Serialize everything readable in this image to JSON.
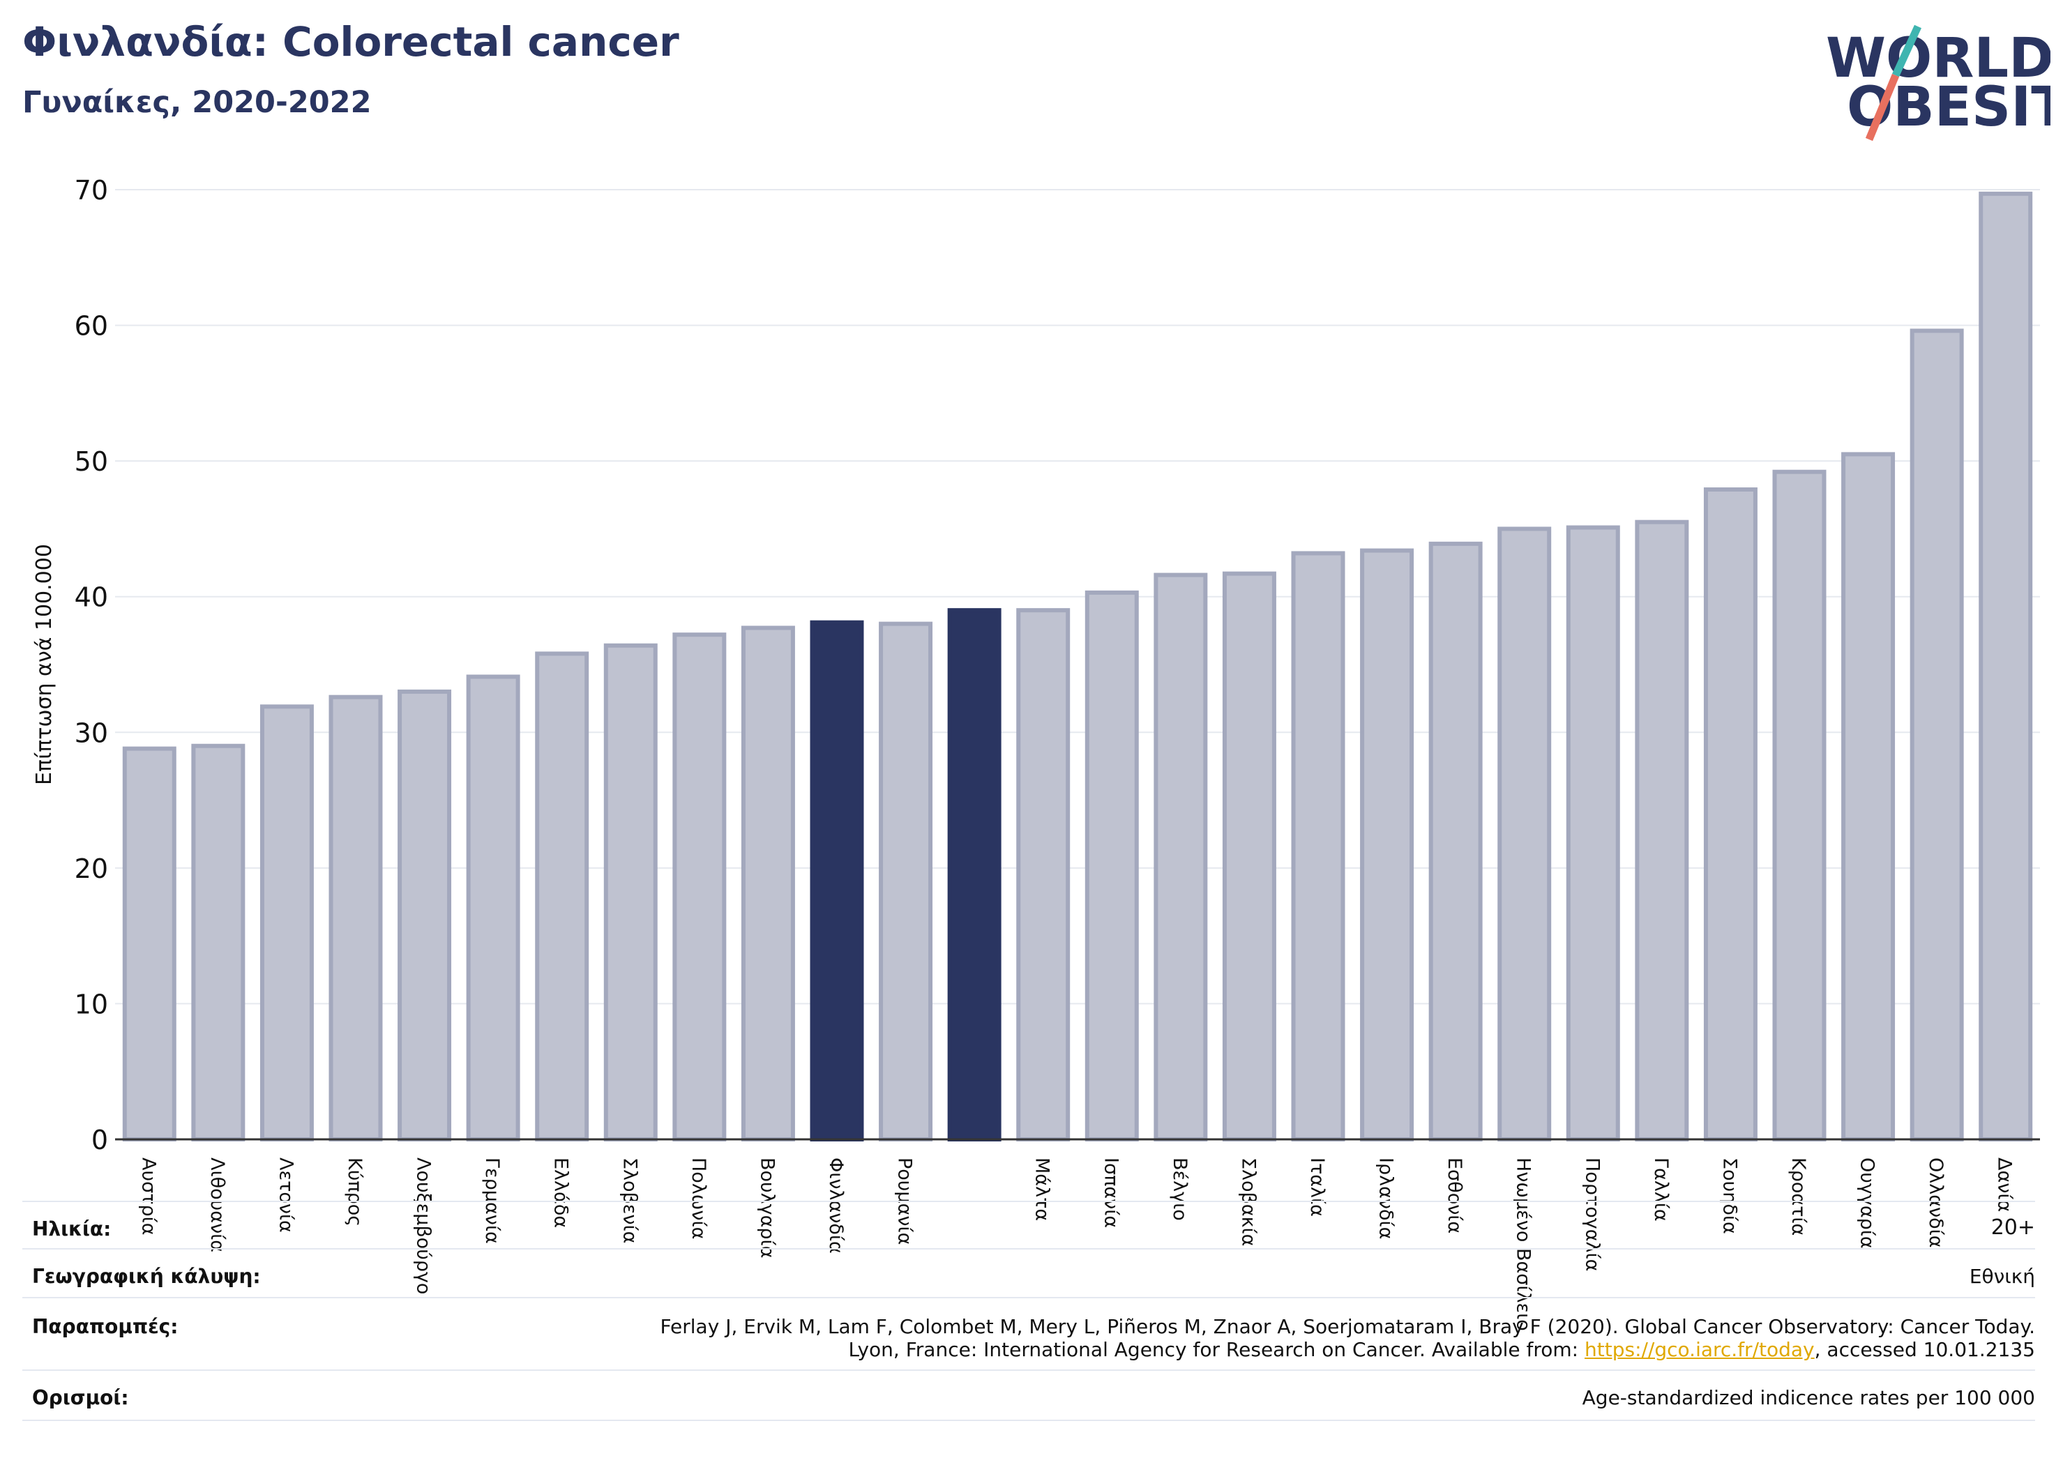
{
  "header": {
    "title": "Φινλανδία: Colorectal cancer",
    "subtitle": "Γυναίκες, 2020-2022"
  },
  "logo": {
    "line1": "WORLD",
    "line2": "OBESITY"
  },
  "colors": {
    "highlight": "#2a3561",
    "bar_fill": "#bfc2d0",
    "bar_stroke": "#a3a8bd",
    "grid": "#e6e9ef",
    "logo_teal": "#3fb5b0",
    "logo_coral": "#e8705f"
  },
  "chart_data": {
    "type": "bar",
    "ylabel": "Επίπτωση ανά 100.000",
    "ylim": [
      0,
      70
    ],
    "yticks": [
      0,
      10,
      20,
      30,
      40,
      50,
      60,
      70
    ],
    "grid": true,
    "categories": [
      "Αυστρία",
      "Λιθουανία",
      "Λετονία",
      "Κύπρος",
      "Λουξεμβούργο",
      "Γερμανία",
      "Ελλάδα",
      "Σλοβενία",
      "Πολωνία",
      "Βουλγαρία",
      "Φινλανδία",
      "Ρουμανία",
      "",
      "Μάλτα",
      "Ισπανία",
      "Βέλγιο",
      "Σλοβακία",
      "Ιταλία",
      "Ιρλανδία",
      "Εσθονία",
      "Ηνωμένο Βασίλειο",
      "Πορτογαλία",
      "Γαλλία",
      "Σουηδία",
      "Κροατία",
      "Ουγγαρία",
      "Ολλανδία",
      "Δανία"
    ],
    "values": [
      28.8,
      29.0,
      31.9,
      32.6,
      33.0,
      34.1,
      35.8,
      36.4,
      37.2,
      37.7,
      38.1,
      38.0,
      39.0,
      39.0,
      40.3,
      41.6,
      41.7,
      43.2,
      43.4,
      43.9,
      45.0,
      45.1,
      45.5,
      47.9,
      49.2,
      50.5,
      59.6,
      69.7
    ],
    "highlighted": [
      10,
      12
    ]
  },
  "info": {
    "age": {
      "key": "Ηλικία:",
      "value": "20+"
    },
    "coverage": {
      "key": "Γεωγραφική κάλυψη:",
      "value": "Εθνική"
    },
    "refs": {
      "key": "Παραπομπές:",
      "line1": "Ferlay J, Ervik M, Lam F, Colombet M, Mery L, Piñeros M, Znaor A, Soerjomataram I, Bray F (2020). Global Cancer Observatory: Cancer Today.",
      "line2_pre": "Lyon, France: International Agency for Research on Cancer. Available from: ",
      "link": "https://gco.iarc.fr/today",
      "line2_post": ", accessed 10.01.2135"
    },
    "definitions": {
      "key": "Ορισμοί:",
      "value": "Age-standardized indicence rates per 100 000"
    }
  }
}
